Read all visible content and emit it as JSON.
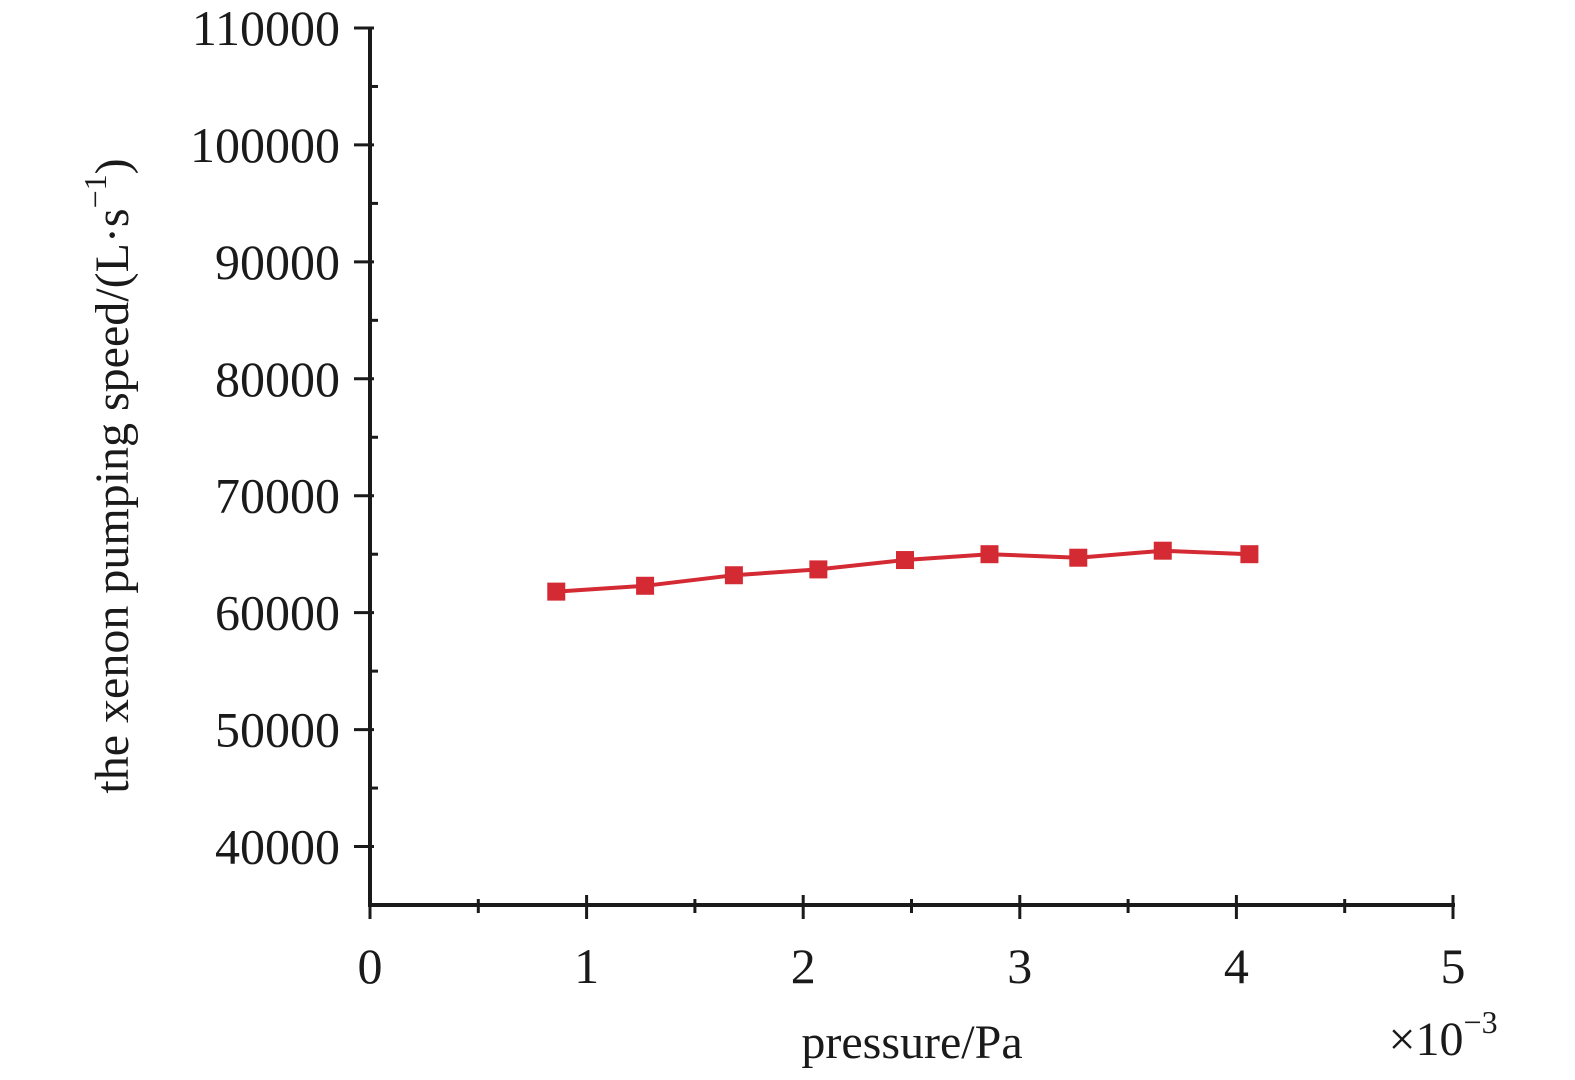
{
  "chart_data": {
    "type": "line",
    "title": "",
    "xlabel": "pressure/Pa",
    "x_multiplier": "×10",
    "x_multiplier_exp": "−3",
    "ylabel": "the xenon pumping speed/(L·s",
    "ylabel_exp": "−1",
    "ylabel_close": ")",
    "xlim": [
      0,
      5
    ],
    "ylim": [
      35000,
      110000
    ],
    "x_ticks": [
      0,
      1,
      2,
      3,
      4,
      5
    ],
    "x_tick_labels": [
      "0",
      "1",
      "2",
      "3",
      "4",
      "5"
    ],
    "y_ticks": [
      40000,
      50000,
      60000,
      70000,
      80000,
      90000,
      100000,
      110000
    ],
    "y_tick_labels": [
      "40000",
      "50000",
      "60000",
      "70000",
      "80000",
      "90000",
      "100000",
      "110000"
    ],
    "grid": false,
    "series": [
      {
        "color": "#d42a33",
        "marker": "square",
        "x": [
          0.86,
          1.27,
          1.68,
          2.07,
          2.47,
          2.86,
          3.27,
          3.66,
          4.06
        ],
        "y": [
          61800,
          62300,
          63200,
          63700,
          64500,
          65000,
          64700,
          65300,
          65000
        ]
      }
    ]
  }
}
